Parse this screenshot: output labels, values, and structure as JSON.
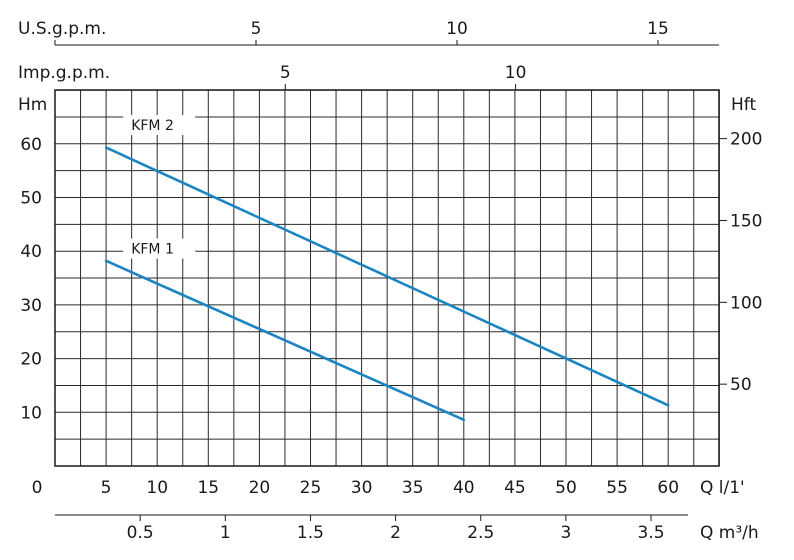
{
  "chart_data": {
    "type": "line",
    "title": "",
    "grid": true,
    "x_axis": {
      "label": "Q l/1'",
      "range": [
        0,
        65
      ],
      "ticks": [
        0,
        5,
        10,
        15,
        20,
        25,
        30,
        35,
        40,
        45,
        50,
        55,
        60
      ]
    },
    "y_axis_left": {
      "label": "Hm",
      "range": [
        0,
        70
      ],
      "ticks": [
        10,
        20,
        30,
        40,
        50,
        60
      ]
    },
    "y_axis_right": {
      "label": "Hft",
      "ticks": [
        50,
        100,
        150,
        200
      ]
    },
    "x_axis_m3h": {
      "label": "Q m³/h",
      "ticks": [
        0.5,
        1,
        1.5,
        2,
        2.5,
        3,
        3.5
      ]
    },
    "x_axis_usgpm": {
      "label": "U.S.g.p.m.",
      "ticks": [
        5,
        10,
        15
      ]
    },
    "x_axis_impgpm": {
      "label": "Imp.g.p.m.",
      "ticks": [
        5,
        10
      ]
    },
    "series": [
      {
        "name": "KFM 2",
        "color": "#1b85c4",
        "points": [
          [
            5,
            59.3
          ],
          [
            60,
            11.3
          ]
        ]
      },
      {
        "name": "KFM 1",
        "color": "#1b85c4",
        "points": [
          [
            5,
            38.2
          ],
          [
            40,
            8.6
          ]
        ]
      }
    ]
  }
}
